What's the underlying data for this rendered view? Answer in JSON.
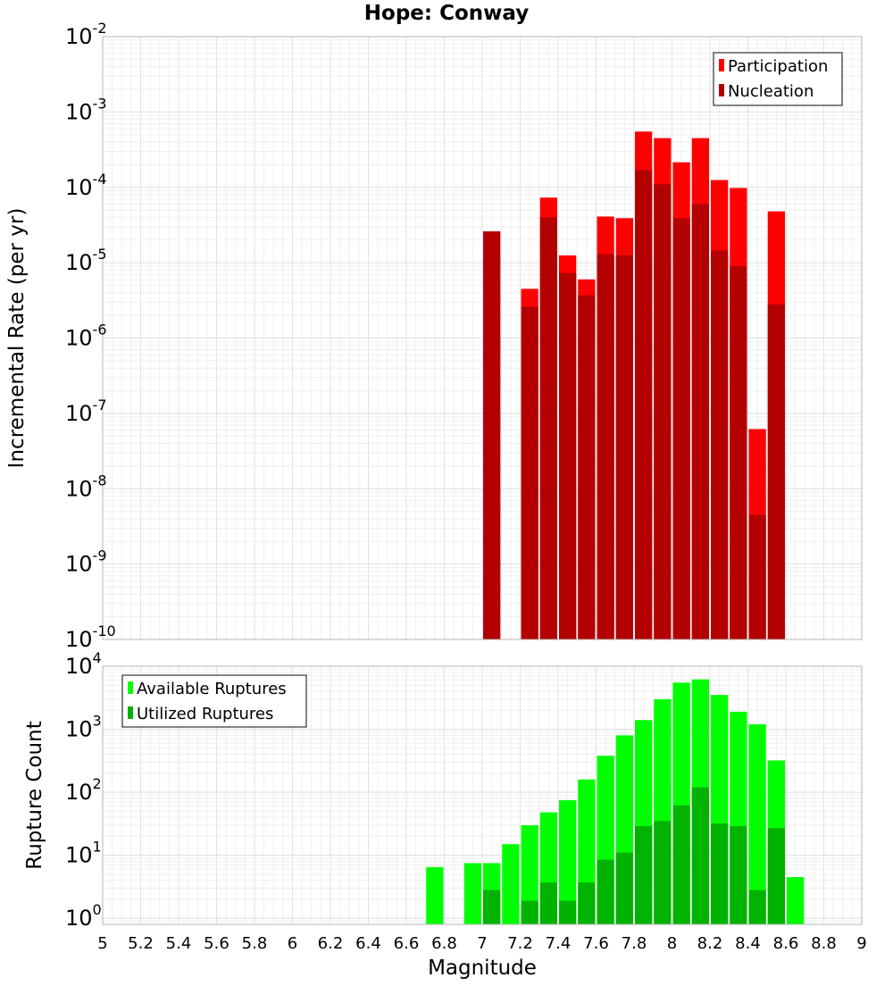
{
  "chart_data": [
    {
      "type": "bar",
      "title": "Hope: Conway",
      "ylabel": "Incremental Rate (per yr)",
      "yscale": "log",
      "ylim": [
        1e-10,
        0.01
      ],
      "xlim": [
        5,
        9
      ],
      "grid": true,
      "legend_placement": "top-right",
      "yticks": [
        {
          "base": "10",
          "exp": "-10"
        },
        {
          "base": "10",
          "exp": "-9"
        },
        {
          "base": "10",
          "exp": "-8"
        },
        {
          "base": "10",
          "exp": "-7"
        },
        {
          "base": "10",
          "exp": "-6"
        },
        {
          "base": "10",
          "exp": "-5"
        },
        {
          "base": "10",
          "exp": "-4"
        },
        {
          "base": "10",
          "exp": "-3"
        },
        {
          "base": "10",
          "exp": "-2"
        }
      ],
      "bar_width": 0.1,
      "series": [
        {
          "name": "Participation",
          "color": "#ff0000",
          "x": [
            7.05,
            7.25,
            7.35,
            7.45,
            7.55,
            7.65,
            7.75,
            7.85,
            7.95,
            8.05,
            8.15,
            8.25,
            8.35,
            8.45,
            8.55
          ],
          "values": [
            2.6e-05,
            4.5e-06,
            7.3e-05,
            1.25e-05,
            6e-06,
            4.1e-05,
            3.9e-05,
            0.00055,
            0.00045,
            0.000215,
            0.00045,
            0.000125,
            9.8e-05,
            6.2e-08,
            4.8e-05
          ]
        },
        {
          "name": "Nucleation",
          "color": "#b30000",
          "x": [
            7.05,
            7.25,
            7.35,
            7.45,
            7.55,
            7.65,
            7.75,
            7.85,
            7.95,
            8.05,
            8.15,
            8.25,
            8.35,
            8.45,
            8.55
          ],
          "values": [
            2.6e-05,
            2.6e-06,
            4e-05,
            7.3e-06,
            3.7e-06,
            1.3e-05,
            1.25e-05,
            0.00017,
            0.00011,
            3.9e-05,
            6e-05,
            1.45e-05,
            9e-06,
            4.5e-09,
            2.8e-06
          ]
        }
      ]
    },
    {
      "type": "bar",
      "xlabel": "Magnitude",
      "ylabel": "Rupture Count",
      "yscale": "log",
      "ylim": [
        0.8,
        10000
      ],
      "xlim": [
        5,
        9
      ],
      "grid": true,
      "legend_placement": "top-left",
      "yticks": [
        {
          "value": 1,
          "base": "10",
          "exp": "0"
        },
        {
          "value": 10,
          "base": "10",
          "exp": "1"
        },
        {
          "value": 100,
          "base": "10",
          "exp": "2"
        },
        {
          "value": 1000,
          "base": "10",
          "exp": "3"
        },
        {
          "value": 10000,
          "base": "10",
          "exp": "4"
        }
      ],
      "xticks": [
        "5",
        "5.2",
        "5.4",
        "5.6",
        "5.8",
        "6",
        "6.2",
        "6.4",
        "6.6",
        "6.8",
        "7",
        "7.2",
        "7.4",
        "7.6",
        "7.8",
        "8",
        "8.2",
        "8.4",
        "8.6",
        "8.8",
        "9"
      ],
      "bar_width": 0.1,
      "series": [
        {
          "name": "Available Ruptures",
          "color": "#00ff00",
          "x": [
            6.75,
            6.95,
            7.05,
            7.15,
            7.25,
            7.35,
            7.45,
            7.55,
            7.65,
            7.75,
            7.85,
            7.95,
            8.05,
            8.15,
            8.25,
            8.35,
            8.45,
            8.55,
            8.65
          ],
          "values": [
            6.5,
            7.5,
            7.5,
            15,
            30,
            48,
            75,
            160,
            380,
            800,
            1400,
            3000,
            5500,
            6200,
            3500,
            1900,
            1200,
            320,
            4.5
          ]
        },
        {
          "name": "Utilized Ruptures",
          "color": "#00b300",
          "x": [
            7.05,
            7.25,
            7.35,
            7.45,
            7.55,
            7.65,
            7.75,
            7.85,
            7.95,
            8.05,
            8.15,
            8.25,
            8.35,
            8.45,
            8.55
          ],
          "values": [
            2.8,
            1.9,
            3.7,
            1.9,
            3.7,
            8.5,
            11,
            29,
            35,
            62,
            120,
            32,
            29,
            2.8,
            27
          ]
        }
      ]
    }
  ]
}
